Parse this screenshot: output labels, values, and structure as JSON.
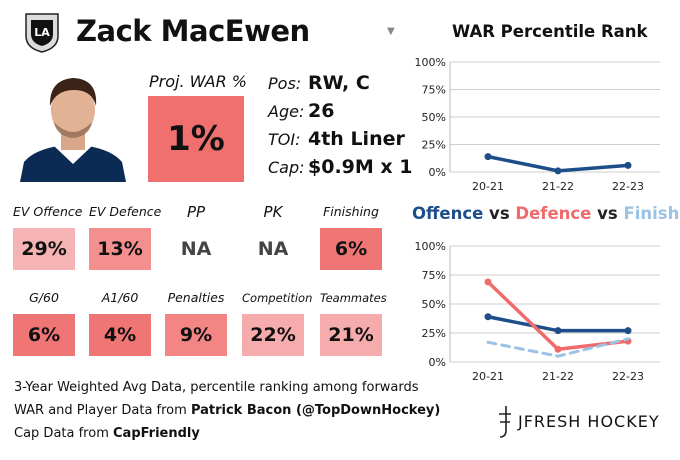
{
  "player": {
    "name": "Zack MacEwen",
    "proj_war_label": "Proj. WAR %",
    "proj_war_value": "1%",
    "info": [
      {
        "label": "Pos:",
        "value": "RW, C"
      },
      {
        "label": "Age:",
        "value": "26"
      },
      {
        "label": "TOI:",
        "value": "4th Liner"
      },
      {
        "label": "Cap:",
        "value": "$0.9M x 1"
      }
    ]
  },
  "stats_row1": [
    {
      "label": "EV Offence",
      "value": "29%",
      "color": "#f6b3b3"
    },
    {
      "label": "EV Defence",
      "value": "13%",
      "color": "#f48f8f"
    },
    {
      "label": "PP",
      "value": "NA",
      "color": "#ffffff"
    },
    {
      "label": "PK",
      "value": "NA",
      "color": "#ffffff"
    },
    {
      "label": "Finishing",
      "value": "6%",
      "color": "#f07575"
    }
  ],
  "stats_row2": [
    {
      "label": "G/60",
      "value": "6%",
      "color": "#f07575"
    },
    {
      "label": "A1/60",
      "value": "4%",
      "color": "#f07575"
    },
    {
      "label": "Penalties",
      "value": "9%",
      "color": "#f48585"
    },
    {
      "label": "Competition",
      "value": "22%",
      "color": "#f6acac"
    },
    {
      "label": "Teammates",
      "value": "21%",
      "color": "#f6acac"
    }
  ],
  "footer": {
    "line1": "3-Year Weighted Avg Data, percentile ranking among forwards",
    "line2_prefix": "WAR and Player Data from ",
    "line2_bold": "Patrick Bacon (@TopDownHockey)",
    "line3_prefix": "Cap Data from ",
    "line3_bold": "CapFriendly"
  },
  "brand": {
    "text": "JFRESH HOCKEY"
  },
  "charts": {
    "war_title": "WAR Percentile Rank",
    "ovd_title": {
      "offence": "Offence",
      "vs1": " vs ",
      "defence": "Defence",
      "vs2": " vs ",
      "finishing": "Finishing"
    }
  },
  "colors": {
    "offence": "#1d4e89",
    "defence": "#f06b6b",
    "finishing": "#9cc3e6"
  },
  "chart_data": [
    {
      "type": "line",
      "title": "WAR Percentile Rank",
      "categories": [
        "20-21",
        "21-22",
        "22-23"
      ],
      "series": [
        {
          "values": [
            14,
            1,
            6
          ]
        }
      ],
      "ylim": [
        0,
        100
      ],
      "yticks": [
        "0%",
        "25%",
        "50%",
        "75%",
        "100%"
      ],
      "grid": true
    },
    {
      "type": "line",
      "title": "Offence vs Defence vs Finishing",
      "categories": [
        "20-21",
        "21-22",
        "22-23"
      ],
      "series": [
        {
          "name": "Offence",
          "values": [
            39,
            27,
            27
          ]
        },
        {
          "name": "Defence",
          "values": [
            69,
            11,
            18
          ]
        },
        {
          "name": "Finishing",
          "values": [
            17,
            5,
            20
          ]
        }
      ],
      "ylim": [
        0,
        100
      ],
      "yticks": [
        "0%",
        "25%",
        "50%",
        "75%",
        "100%"
      ],
      "grid": true
    }
  ]
}
